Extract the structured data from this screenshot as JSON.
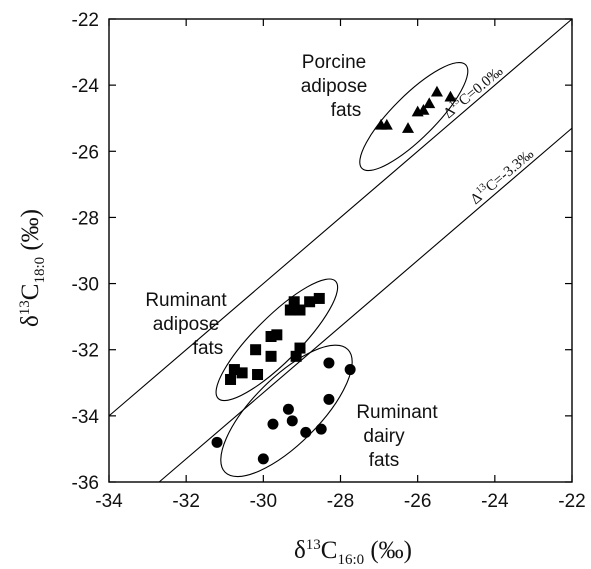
{
  "chart_data": {
    "type": "scatter",
    "xlabel": {
      "base": "δ",
      "sup": "13",
      "main": "C",
      "sub": "16:0",
      "unit": " (‰)"
    },
    "ylabel": {
      "base": "δ",
      "sup": "13",
      "main": "C",
      "sub": "18:0",
      "unit": " (‰)"
    },
    "xlim": [
      -34,
      -22
    ],
    "ylim": [
      -36,
      -22
    ],
    "xticks": [
      -34,
      -32,
      -30,
      -28,
      -26,
      -24,
      -22
    ],
    "yticks": [
      -36,
      -34,
      -32,
      -30,
      -28,
      -26,
      -24,
      -22
    ],
    "grid": false,
    "lines": [
      {
        "offset": 0.0,
        "label_delta": "Δ",
        "label_sup": "13",
        "label_rest": "C=0.0‰"
      },
      {
        "offset": -3.3,
        "label_delta": "Δ",
        "label_sup": "13",
        "label_rest": "C=-3.3‰"
      }
    ],
    "series": [
      {
        "marker": "triangle",
        "points": [
          [
            -26.95,
            -25.2
          ],
          [
            -26.8,
            -25.2
          ],
          [
            -26.25,
            -25.3
          ],
          [
            -26.0,
            -24.8
          ],
          [
            -25.85,
            -24.75
          ],
          [
            -25.7,
            -24.55
          ],
          [
            -25.5,
            -24.2
          ],
          [
            -25.15,
            -24.35
          ]
        ]
      },
      {
        "marker": "square",
        "points": [
          [
            -30.85,
            -32.9
          ],
          [
            -30.75,
            -32.6
          ],
          [
            -30.55,
            -32.7
          ],
          [
            -30.2,
            -32.0
          ],
          [
            -30.15,
            -32.75
          ],
          [
            -29.8,
            -32.2
          ],
          [
            -29.8,
            -31.6
          ],
          [
            -29.65,
            -31.55
          ],
          [
            -29.3,
            -30.8
          ],
          [
            -29.2,
            -30.55
          ],
          [
            -29.15,
            -32.2
          ],
          [
            -29.05,
            -31.95
          ],
          [
            -29.05,
            -30.8
          ],
          [
            -28.8,
            -30.55
          ],
          [
            -28.55,
            -30.45
          ]
        ]
      },
      {
        "marker": "circle",
        "points": [
          [
            -31.2,
            -34.8
          ],
          [
            -30.0,
            -35.3
          ],
          [
            -29.75,
            -34.25
          ],
          [
            -29.35,
            -33.8
          ],
          [
            -29.25,
            -34.15
          ],
          [
            -28.9,
            -34.5
          ],
          [
            -28.5,
            -34.4
          ],
          [
            -28.3,
            -33.5
          ],
          [
            -28.3,
            -32.4
          ],
          [
            -27.75,
            -32.6
          ]
        ]
      }
    ],
    "annotations": [
      {
        "lines": [
          "Porcine",
          "adipose",
          "fats"
        ]
      },
      {
        "lines": [
          "Ruminant",
          "adipose",
          "fats"
        ]
      },
      {
        "lines": [
          "Ruminant",
          "dairy",
          "fats"
        ]
      }
    ]
  }
}
